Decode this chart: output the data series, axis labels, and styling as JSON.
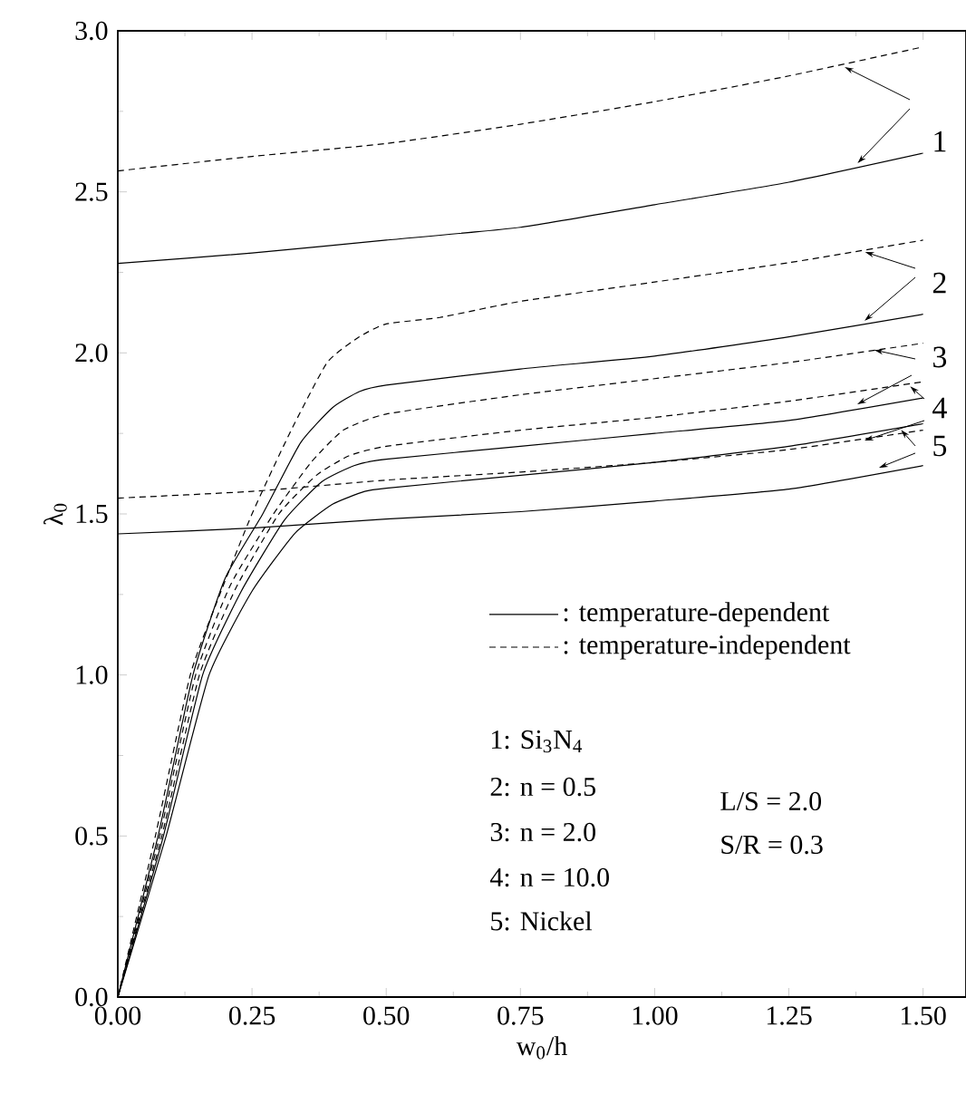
{
  "chart_data": {
    "type": "line",
    "xlabel": "w$_{0}$/h",
    "ylabel": "λ$_{0}$",
    "xlim": [
      0,
      1.58
    ],
    "ylim": [
      0,
      3.0
    ],
    "xticks": [
      {
        "value": 0,
        "label": "0.00"
      },
      {
        "value": 0.25,
        "label": "0.25"
      },
      {
        "value": 0.5,
        "label": "0.50"
      },
      {
        "value": 0.75,
        "label": "0.75"
      },
      {
        "value": 1.0,
        "label": "1.00"
      },
      {
        "value": 1.25,
        "label": "1.25"
      },
      {
        "value": 1.5,
        "label": "1.50"
      }
    ],
    "yticks": [
      {
        "value": 0,
        "label": "0.0"
      },
      {
        "value": 0.5,
        "label": "0.5"
      },
      {
        "value": 1.0,
        "label": "1.0"
      },
      {
        "value": 1.5,
        "label": "1.5"
      },
      {
        "value": 2.0,
        "label": "2.0"
      },
      {
        "value": 2.5,
        "label": "2.5"
      },
      {
        "value": 3.0,
        "label": "3.0"
      }
    ],
    "grid": false,
    "marker": "none",
    "series": [
      {
        "color": "#000000",
        "line_style": "dashed",
        "x": [
          0,
          0.25,
          0.5,
          0.75,
          1.0,
          1.25,
          1.5
        ],
        "values": [
          2.565,
          2.61,
          2.65,
          2.71,
          2.78,
          2.86,
          2.95
        ]
      },
      {
        "color": "#000000",
        "line_style": "solid",
        "x": [
          0,
          0.25,
          0.5,
          0.75,
          1.0,
          1.25,
          1.5
        ],
        "values": [
          2.278,
          2.31,
          2.35,
          2.39,
          2.46,
          2.53,
          2.62
        ]
      },
      {
        "color": "#000000",
        "line_style": "dashed",
        "x": [
          0,
          0.07,
          0.135,
          0.19,
          0.25,
          0.32,
          0.39,
          0.45,
          0.5,
          0.6,
          0.75,
          1.0,
          1.25,
          1.5
        ],
        "values": [
          0,
          0.5,
          1.0,
          1.25,
          1.5,
          1.75,
          1.97,
          2.05,
          2.09,
          2.11,
          2.16,
          2.22,
          2.28,
          2.35
        ]
      },
      {
        "color": "#000000",
        "line_style": "solid",
        "x": [
          0,
          0.075,
          0.14,
          0.2,
          0.27,
          0.34,
          0.4,
          0.45,
          0.5,
          0.75,
          1.0,
          1.25,
          1.5
        ],
        "values": [
          0,
          0.5,
          1.0,
          1.3,
          1.5,
          1.72,
          1.83,
          1.88,
          1.9,
          1.95,
          1.99,
          2.05,
          2.12
        ]
      },
      {
        "color": "#000000",
        "line_style": "dashed",
        "x": [
          0,
          0.078,
          0.145,
          0.21,
          0.29,
          0.36,
          0.42,
          0.5,
          0.75,
          1.0,
          1.25,
          1.5
        ],
        "values": [
          0,
          0.5,
          1.0,
          1.28,
          1.5,
          1.66,
          1.76,
          1.81,
          1.87,
          1.92,
          1.97,
          2.03
        ]
      },
      {
        "color": "#000000",
        "line_style": "dashed",
        "x": [
          0,
          0.082,
          0.152,
          0.22,
          0.3,
          0.37,
          0.43,
          0.5,
          0.75,
          1.0,
          1.25,
          1.5
        ],
        "values": [
          0,
          0.5,
          1.0,
          1.27,
          1.5,
          1.62,
          1.68,
          1.71,
          1.76,
          1.8,
          1.85,
          1.91
        ]
      },
      {
        "color": "#000000",
        "line_style": "solid",
        "x": [
          0,
          0.085,
          0.158,
          0.23,
          0.31,
          0.38,
          0.44,
          0.5,
          0.75,
          1.0,
          1.25,
          1.5
        ],
        "values": [
          0,
          0.5,
          1.0,
          1.26,
          1.48,
          1.6,
          1.65,
          1.67,
          1.71,
          1.75,
          1.79,
          1.86
        ]
      },
      {
        "color": "#000000",
        "line_style": "solid",
        "x": [
          0,
          0.09,
          0.17,
          0.25,
          0.33,
          0.4,
          0.46,
          0.5,
          0.75,
          1.0,
          1.25,
          1.5
        ],
        "values": [
          0,
          0.5,
          1.0,
          1.26,
          1.44,
          1.53,
          1.57,
          1.58,
          1.62,
          1.66,
          1.71,
          1.78
        ]
      },
      {
        "color": "#000000",
        "line_style": "dashed",
        "x": [
          0,
          0.25,
          0.5,
          0.75,
          1.0,
          1.25,
          1.5
        ],
        "values": [
          1.549,
          1.57,
          1.605,
          1.63,
          1.66,
          1.7,
          1.76
        ]
      },
      {
        "color": "#000000",
        "line_style": "solid",
        "x": [
          0,
          0.25,
          0.5,
          0.75,
          1.0,
          1.25,
          1.5
        ],
        "values": [
          1.438,
          1.456,
          1.484,
          1.507,
          1.54,
          1.577,
          1.65
        ]
      }
    ],
    "annotations": [
      ": temperature-dependent",
      ": temperature-independent",
      "1: Si$_{3}$N$_{4}$",
      "2: n = 0.5",
      "3: n = 2.0",
      "4: n = 10.0",
      "5: Nickel",
      "L/S = 2.0",
      "S/R = 0.3",
      {
        "text": "1",
        "x": 1.378,
        "y": 2.589
      },
      {
        "text": "2",
        "x": 1.392,
        "y": 2.313
      },
      {
        "text": "3",
        "x": 1.409,
        "y": 2.009
      },
      {
        "text": "4",
        "x": 1.476,
        "y": 1.896
      },
      {
        "text": "5",
        "x": 1.459,
        "y": 1.761
      }
    ]
  }
}
